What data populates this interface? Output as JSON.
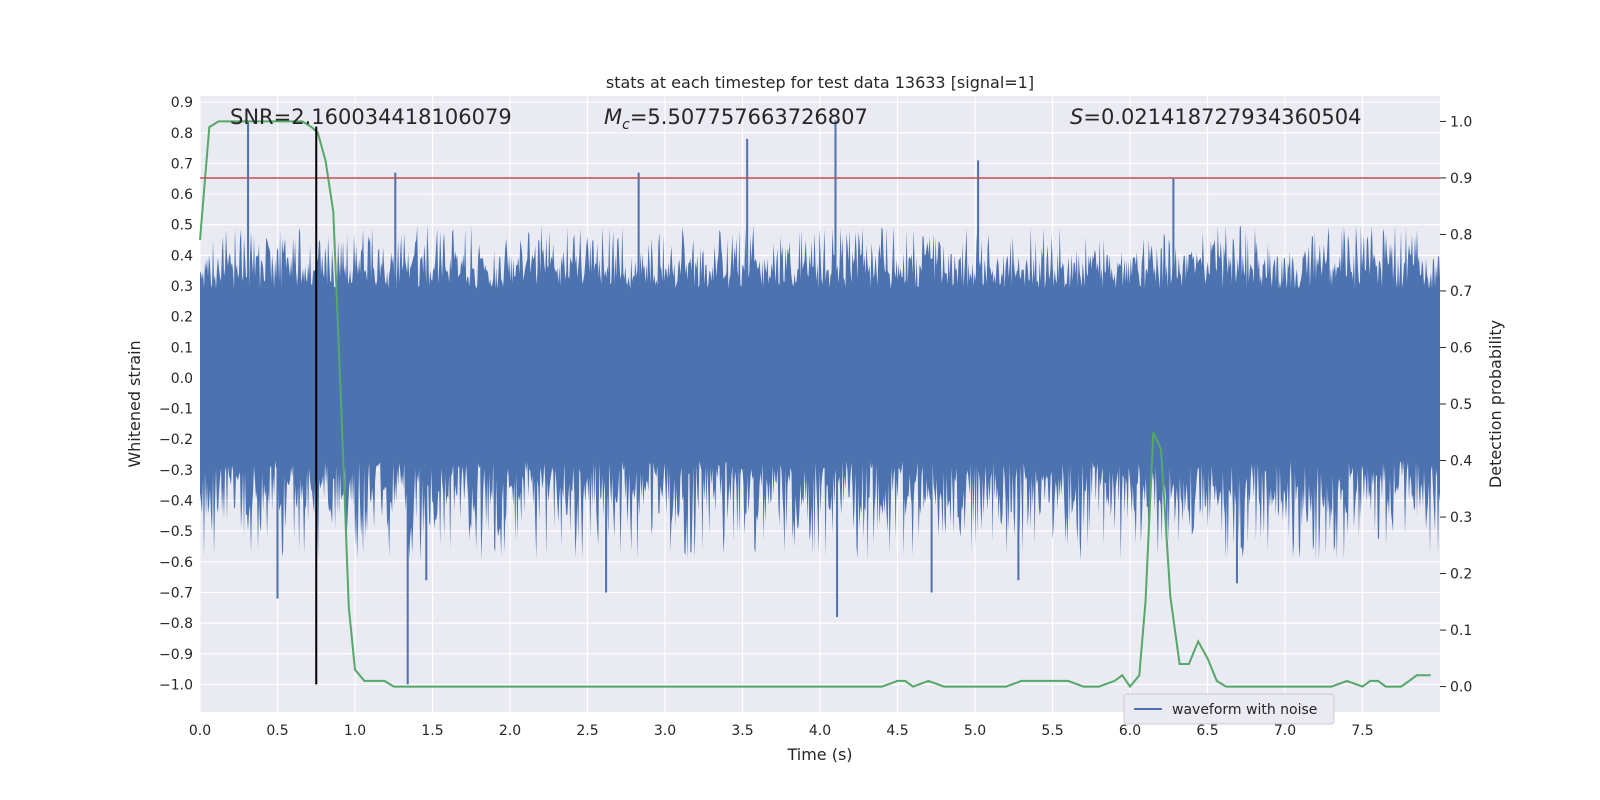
{
  "chart_data": {
    "type": "line",
    "title": "stats at each timestep for test data 13633 [signal=1]",
    "xlabel": "Time (s)",
    "ylabel": "Whitened strain",
    "y2label": "Detection probability",
    "xlim": [
      0.0,
      8.0
    ],
    "ylim": [
      -1.09,
      0.92
    ],
    "y2lim": [
      -0.045,
      1.045
    ],
    "xticks": [
      0.0,
      0.5,
      1.0,
      1.5,
      2.0,
      2.5,
      3.0,
      3.5,
      4.0,
      4.5,
      5.0,
      5.5,
      6.0,
      6.5,
      7.0,
      7.5
    ],
    "xtick_labels": [
      "0.0",
      "0.5",
      "1.0",
      "1.5",
      "2.0",
      "2.5",
      "3.0",
      "3.5",
      "4.0",
      "4.5",
      "5.0",
      "5.5",
      "6.0",
      "6.5",
      "7.0",
      "7.5"
    ],
    "yticks": [
      -1.0,
      -0.9,
      -0.8,
      -0.7,
      -0.6,
      -0.5,
      -0.4,
      -0.3,
      -0.2,
      -0.1,
      0.0,
      0.1,
      0.2,
      0.3,
      0.4,
      0.5,
      0.6,
      0.7,
      0.8,
      0.9
    ],
    "ytick_labels": [
      "−1.0",
      "−0.9",
      "−0.8",
      "−0.7",
      "−0.6",
      "−0.5",
      "−0.4",
      "−0.3",
      "−0.2",
      "−0.1",
      "0.0",
      "0.1",
      "0.2",
      "0.3",
      "0.4",
      "0.5",
      "0.6",
      "0.7",
      "0.8",
      "0.9"
    ],
    "y2ticks": [
      0.0,
      0.1,
      0.2,
      0.3,
      0.4,
      0.5,
      0.6,
      0.7,
      0.8,
      0.9,
      1.0
    ],
    "y2tick_labels": [
      "0.0",
      "0.1",
      "0.2",
      "0.3",
      "0.4",
      "0.5",
      "0.6",
      "0.7",
      "0.8",
      "0.9",
      "1.0"
    ],
    "grid": true,
    "legend_position": "bottom-right",
    "annotations": {
      "snr": "SNR=2.160034418106079",
      "mc_symbol": "M",
      "mc_sub": "c",
      "mc_value": "=5.507757663726807",
      "s_symbol": "S",
      "s_value": "=0.021418727934360504"
    },
    "series": [
      {
        "name": "waveform with noise",
        "kind": "noise-waveform",
        "color": "#4c72b0",
        "dense_band": [
          -0.27,
          0.29
        ],
        "outer_envelope": [
          -0.6,
          0.5
        ],
        "notable_peaks": [
          {
            "x": 0.31,
            "y": 0.84
          },
          {
            "x": 1.26,
            "y": 0.67
          },
          {
            "x": 2.83,
            "y": 0.67
          },
          {
            "x": 3.53,
            "y": 0.78
          },
          {
            "x": 4.1,
            "y": 0.84
          },
          {
            "x": 5.02,
            "y": 0.71
          },
          {
            "x": 6.28,
            "y": 0.65
          }
        ],
        "notable_troughs": [
          {
            "x": 0.5,
            "y": -0.72
          },
          {
            "x": 1.34,
            "y": -1.0
          },
          {
            "x": 1.46,
            "y": -0.66
          },
          {
            "x": 2.62,
            "y": -0.7
          },
          {
            "x": 4.11,
            "y": -0.78
          },
          {
            "x": 4.72,
            "y": -0.7
          },
          {
            "x": 5.28,
            "y": -0.66
          },
          {
            "x": 6.69,
            "y": -0.67
          }
        ]
      },
      {
        "name": "",
        "kind": "detection-probability",
        "axis": "right",
        "color": "#55a868",
        "x": [
          0.0,
          0.06,
          0.12,
          0.2,
          0.3,
          0.4,
          0.5,
          0.6,
          0.66,
          0.72,
          0.76,
          0.81,
          0.86,
          0.91,
          0.96,
          1.0,
          1.06,
          1.12,
          1.19,
          1.25,
          1.3,
          1.35,
          1.42,
          1.5,
          1.6,
          1.7,
          1.8,
          1.9,
          2.0,
          2.1,
          2.2,
          2.3,
          2.4,
          2.6,
          2.8,
          3.0,
          3.2,
          3.4,
          3.6,
          3.8,
          4.0,
          4.2,
          4.4,
          4.5,
          4.55,
          4.6,
          4.7,
          4.8,
          5.0,
          5.2,
          5.3,
          5.5,
          5.6,
          5.7,
          5.8,
          5.9,
          5.95,
          6.0,
          6.06,
          6.1,
          6.15,
          6.2,
          6.26,
          6.32,
          6.38,
          6.44,
          6.5,
          6.56,
          6.62,
          6.7,
          6.8,
          6.9,
          7.0,
          7.1,
          7.2,
          7.3,
          7.4,
          7.5,
          7.55,
          7.6,
          7.65,
          7.7,
          7.75,
          7.85,
          7.94
        ],
        "y": [
          0.79,
          0.99,
          1.0,
          1.0,
          1.0,
          1.0,
          1.0,
          1.0,
          1.0,
          0.99,
          0.98,
          0.93,
          0.84,
          0.5,
          0.14,
          0.03,
          0.01,
          0.01,
          0.01,
          0.0,
          0.0,
          0.0,
          0.0,
          0.0,
          0.0,
          0.0,
          0.0,
          0.0,
          0.0,
          0.0,
          0.0,
          0.0,
          0.0,
          0.0,
          0.0,
          0.0,
          0.0,
          0.0,
          0.0,
          0.0,
          0.0,
          0.0,
          0.0,
          0.01,
          0.01,
          0.0,
          0.01,
          0.0,
          0.0,
          0.0,
          0.01,
          0.01,
          0.01,
          0.0,
          0.0,
          0.01,
          0.02,
          0.0,
          0.02,
          0.15,
          0.45,
          0.42,
          0.16,
          0.04,
          0.04,
          0.08,
          0.05,
          0.01,
          0.0,
          0.0,
          0.0,
          0.0,
          0.0,
          0.0,
          0.0,
          0.0,
          0.01,
          0.0,
          0.01,
          0.01,
          0.0,
          0.0,
          0.0,
          0.02,
          0.02
        ]
      },
      {
        "name": "",
        "kind": "threshold",
        "axis": "right",
        "color": "#c44e52",
        "y": 0.9
      },
      {
        "name": "",
        "kind": "marker-line",
        "color": "#000000",
        "x": 0.75,
        "y_range": [
          -1.0,
          0.82
        ]
      }
    ]
  }
}
